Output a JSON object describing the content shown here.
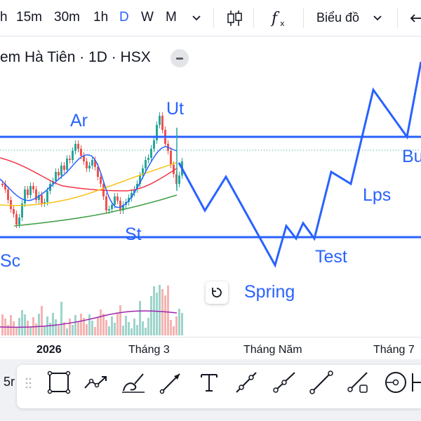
{
  "toolbar": {
    "timeframes": [
      {
        "label": "h"
      },
      {
        "label": "15m"
      },
      {
        "label": "30m"
      },
      {
        "label": "1h"
      },
      {
        "label": "D"
      },
      {
        "label": "W"
      },
      {
        "label": "M"
      }
    ],
    "active_timeframe": "D",
    "chart_type_label": "Biểu đồ",
    "icons": [
      "chevron-down-icon",
      "candlestick-icon",
      "indicators-fx-icon",
      "chevron-down-icon",
      "undo-icon"
    ]
  },
  "chart": {
    "title": "em Hà Tiên · 1D · HSX",
    "annotations": {
      "ar": "Ar",
      "ut": "Ut",
      "st": "St",
      "sc": "Sc",
      "spring": "Spring",
      "test": "Test",
      "lps": "Lps",
      "bu": "Bu"
    },
    "colors": {
      "up": "#26a69a",
      "down": "#ef5350",
      "drawing": "#2962ff",
      "ma_fast": "#2962ff",
      "ma_mid": "#f23645",
      "ma_slow": "#43a047",
      "ma_yellow": "#f7c31c",
      "volume_ma": "#9c27b0"
    }
  },
  "xaxis": {
    "labels": [
      {
        "text": "2026",
        "bold": true
      },
      {
        "text": "Tháng 3",
        "bold": false
      },
      {
        "text": "Tháng Năm",
        "bold": false
      },
      {
        "text": "Tháng 7",
        "bold": false
      }
    ]
  },
  "drawbar": {
    "left_label": "5r",
    "tools": [
      "rectangle-tool-icon",
      "path-tool-icon",
      "brush-tool-icon",
      "arrow-tool-icon",
      "text-tool-icon",
      "trend-line-icon",
      "ray-tool-icon",
      "segment-tool-icon",
      "extended-line-icon",
      "vertical-gap-icon",
      "circle-tool-icon",
      "more-tools-icon"
    ]
  }
}
